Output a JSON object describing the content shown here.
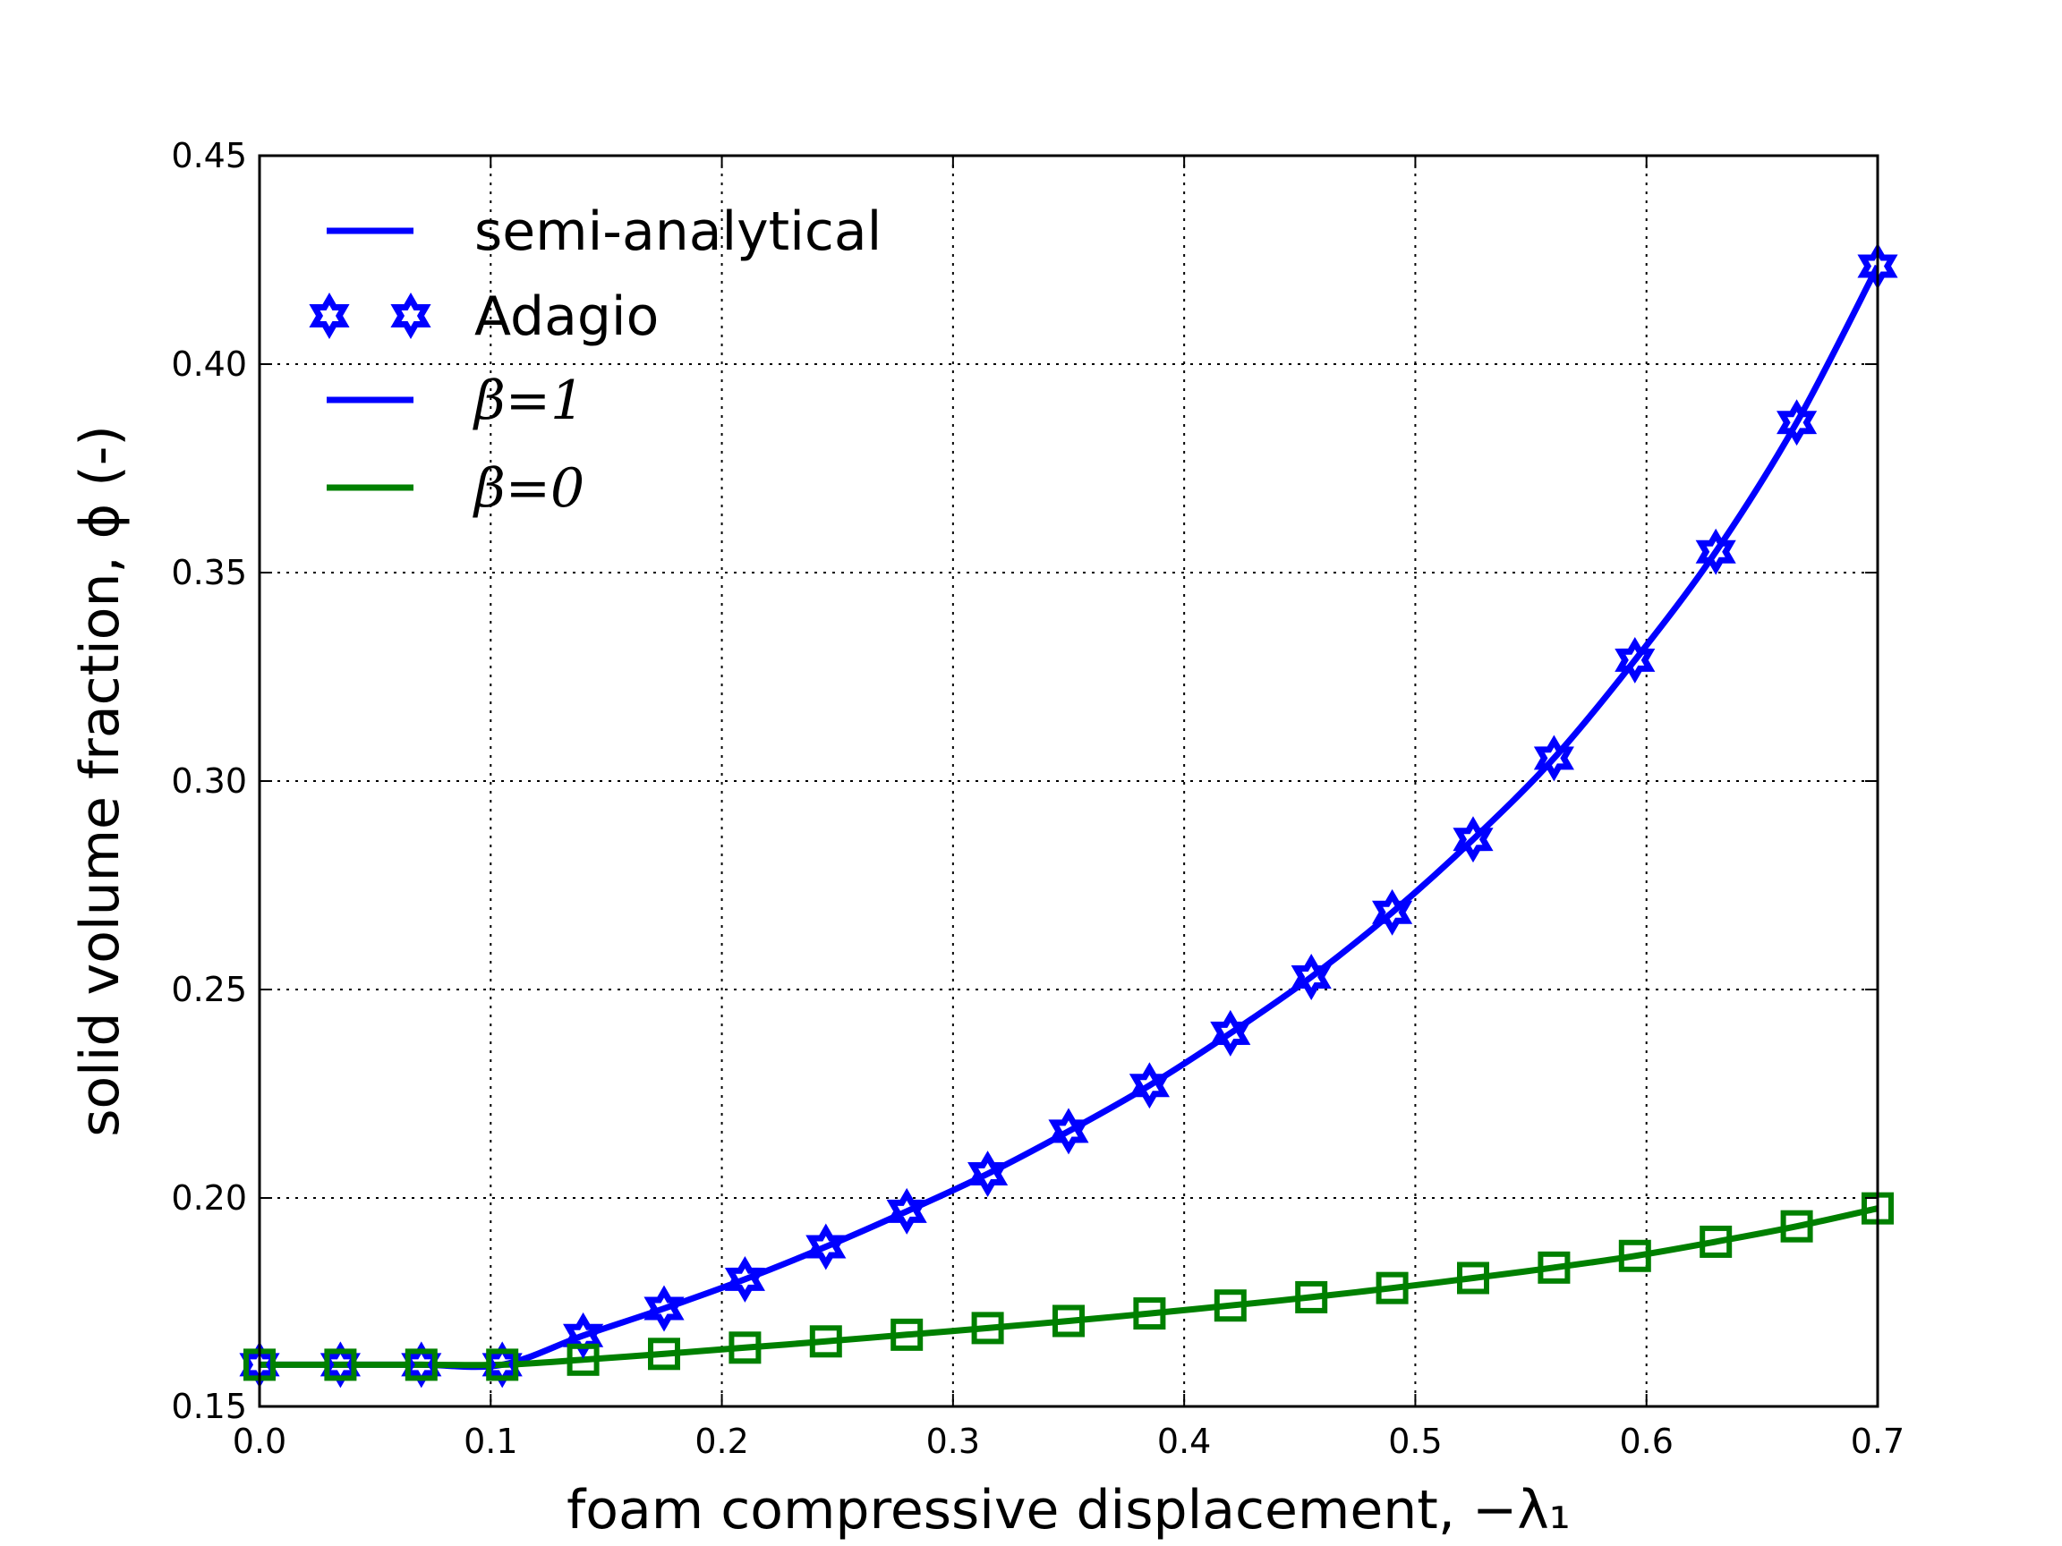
{
  "chart_data": {
    "type": "line",
    "xlabel": "foam compressive displacement, −λ₁",
    "ylabel": "solid volume fraction, ϕ (-)",
    "xlim": [
      0.0,
      0.7
    ],
    "ylim": [
      0.15,
      0.45
    ],
    "x_ticks": [
      "0.0",
      "0.1",
      "0.2",
      "0.3",
      "0.4",
      "0.5",
      "0.6",
      "0.7"
    ],
    "y_ticks": [
      "0.15",
      "0.20",
      "0.25",
      "0.30",
      "0.35",
      "0.40",
      "0.45"
    ],
    "grid": true,
    "legend_position": "top-left",
    "legend": [
      {
        "label": "semi-analytical",
        "style": "line",
        "color": "#0000ff"
      },
      {
        "label": "Adagio",
        "style": "star-markers",
        "color": "#0000ff"
      },
      {
        "label": "β=1",
        "style": "line",
        "color": "#0000ff"
      },
      {
        "label": "β=0",
        "style": "line",
        "color": "#008000"
      }
    ],
    "series": [
      {
        "name": "β=1",
        "color": "#0000ff",
        "marker": "star",
        "x": [
          0.0,
          0.035,
          0.07,
          0.105,
          0.14,
          0.175,
          0.21,
          0.245,
          0.28,
          0.315,
          0.35,
          0.385,
          0.42,
          0.455,
          0.49,
          0.525,
          0.56,
          0.595,
          0.63,
          0.665,
          0.7
        ],
        "y": [
          0.16,
          0.16,
          0.16,
          0.16,
          0.167,
          0.1735,
          0.1805,
          0.1883,
          0.1968,
          0.2058,
          0.216,
          0.227,
          0.2395,
          0.253,
          0.2685,
          0.286,
          0.3055,
          0.329,
          0.355,
          0.386,
          0.4235
        ]
      },
      {
        "name": "β=0",
        "color": "#008000",
        "marker": "square",
        "x": [
          0.0,
          0.035,
          0.07,
          0.105,
          0.14,
          0.175,
          0.21,
          0.245,
          0.28,
          0.315,
          0.35,
          0.385,
          0.42,
          0.455,
          0.49,
          0.525,
          0.56,
          0.595,
          0.63,
          0.665,
          0.7
        ],
        "y": [
          0.16,
          0.16,
          0.16,
          0.16,
          0.1612,
          0.1626,
          0.1641,
          0.1656,
          0.1672,
          0.1688,
          0.1705,
          0.1723,
          0.1742,
          0.1762,
          0.1784,
          0.1808,
          0.1833,
          0.1861,
          0.1895,
          0.1932,
          0.1975
        ]
      }
    ]
  }
}
